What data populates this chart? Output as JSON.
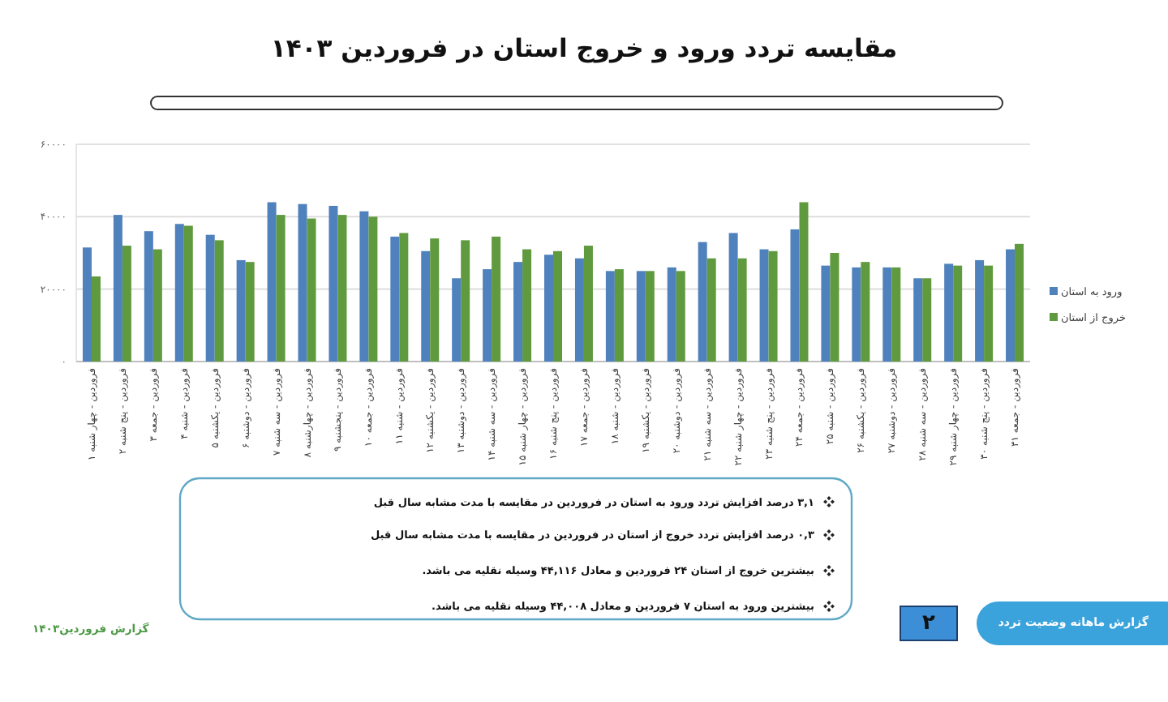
{
  "chart_data": {
    "type": "bar",
    "title": "مقایسه تردد ورود و خروج استان در فروردین ۱۴۰۳",
    "categories": [
      "۱ فروردین - چهار شنبه",
      "۲ فروردین - پنج شنبه",
      "۳ فروردین - جمعه",
      "۴ فروردین - شنبه",
      "۵ فروردین - یکشنبه",
      "۶ فروردین - دوشنبه",
      "۷ فروردین - سه شنبه",
      "۸ فروردین - چهارشنبه",
      "۹ فروردین - پنجشنبه",
      "۱۰ فروردین - جمعه",
      "۱۱ فروردین - شنبه",
      "۱۲ فروردین - یکشنبه",
      "۱۳ فروردین - دوشنبه",
      "۱۴ فروردین - سه شنبه",
      "۱۵ فروردین - چهار شنبه",
      "۱۶ فروردین - پنج شنبه",
      "۱۷ فروردین - جمعه",
      "۱۸ فروردین - شنبه",
      "۱۹ فروردین - یکشنبه",
      "۲۰ فروردین - دوشنبه",
      "۲۱ فروردین - سه شنبه",
      "۲۲ فروردین - چهار شنبه",
      "۲۳ فروردین - پنج شنبه",
      "۲۴ فروردین - جمعه",
      "۲۵ فروردین - شنبه",
      "۲۶ فروردین - یکشنبه",
      "۲۷ فروردین - دوشنبه",
      "۲۸ فروردین - سه شنبه",
      "۲۹ فروردین - چهار شنبه",
      "۳۰ فروردین - پنج شنبه",
      "۳۱ فروردین - جمعه"
    ],
    "series": [
      {
        "name": "ورود به استان",
        "color": "#4f81bd",
        "values": [
          31500,
          40500,
          36000,
          38000,
          35000,
          28000,
          44000,
          43500,
          43000,
          41500,
          34500,
          30500,
          23000,
          25500,
          27500,
          29500,
          28500,
          25000,
          25000,
          26000,
          33000,
          35500,
          31000,
          36500,
          26500,
          26000,
          26000,
          23000,
          27000,
          28000,
          31000
        ]
      },
      {
        "name": "خروج از استان",
        "color": "#5f9a3f",
        "values": [
          23500,
          32000,
          31000,
          37500,
          33500,
          27500,
          40500,
          39500,
          40500,
          40000,
          35500,
          34000,
          33500,
          34500,
          31000,
          30500,
          32000,
          25500,
          25000,
          25000,
          28500,
          28500,
          30500,
          44000,
          30000,
          27500,
          26000,
          23000,
          26500,
          26500,
          32500
        ]
      }
    ],
    "ylim": [
      0,
      60000
    ],
    "yticks": [
      {
        "value": 0,
        "label": "۰"
      },
      {
        "value": 20000,
        "label": "۲۰۰۰۰"
      },
      {
        "value": 40000,
        "label": "۴۰۰۰۰"
      },
      {
        "value": 60000,
        "label": "۶۰۰۰۰"
      }
    ],
    "grid": "y",
    "legend": "right",
    "annotations": [
      "۳,۱ درصد افزایش تردد ورود به استان در فروردین در مقایسه با مدت مشابه سال قبل",
      "۰,۳ درصد افزایش تردد خروج از استان در فروردین در مقایسه با مدت مشابه سال قبل",
      "بیشترین خروج از استان ۲۴ فروردین و معادل ۴۴,۱۱۶ وسیله نقلیه می باشد.",
      "بیشترین ورود به استان ۷ فروردین و معادل ۴۴,۰۰۸ وسیله نقلیه می باشد.",
      "۲",
      "گزارش ماهانه وضعیت تردد",
      "گزارش فروردین۱۴۰۳"
    ]
  }
}
